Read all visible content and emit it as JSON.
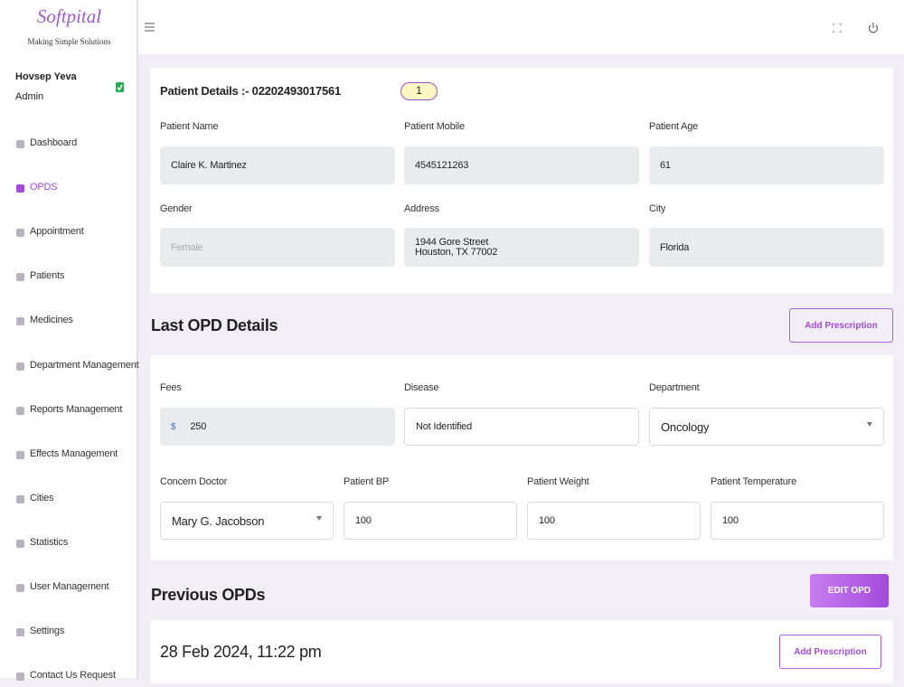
{
  "brand": {
    "name": "Softpital",
    "tagline": "Making Simple Solutions"
  },
  "user": {
    "name": "Hovsep Yeva",
    "role": "Admin"
  },
  "nav": [
    "Dashboard",
    "OPDS",
    "Appointment",
    "Patients",
    "Medicines",
    "Department Management",
    "Reports Management",
    "Effects Management",
    "Cities",
    "Statistics",
    "User Management",
    "Settings",
    "Contact Us Request"
  ],
  "patient": {
    "heading": "Patient Details :- 02202493017561",
    "badge": "1",
    "fields": [
      {
        "label": "Patient Name",
        "value": "Claire K. Martinez"
      },
      {
        "label": "Patient Mobile",
        "value": "4545121263"
      },
      {
        "label": "Patient Age",
        "value": "61"
      },
      {
        "label": "Gender",
        "value": "Female"
      },
      {
        "label": "Address",
        "value": [
          "1944 Gore Street",
          "Houston, TX 77002"
        ]
      },
      {
        "label": "City",
        "value": "Florida"
      }
    ]
  },
  "last_opd": {
    "title": "Last OPD Details",
    "button": "Add Prescription",
    "currency": "$",
    "fields": [
      {
        "label": "Fees",
        "value": "250"
      },
      {
        "label": "Disease",
        "value": "Not Identified"
      },
      {
        "label": "Department",
        "value": "Oncology"
      },
      {
        "label": "Concern Doctor",
        "value": "Mary G. Jacobson"
      },
      {
        "label": "Patient BP",
        "value": "100"
      },
      {
        "label": "Patient Weight",
        "value": "100"
      },
      {
        "label": "Patient Temperature",
        "value": "100"
      }
    ]
  },
  "previous": {
    "title": "Previous OPDs",
    "button": "EDIT OPD",
    "entry": {
      "date": "28 Feb 2024, 11:22 pm",
      "button": "Add Prescription"
    }
  }
}
